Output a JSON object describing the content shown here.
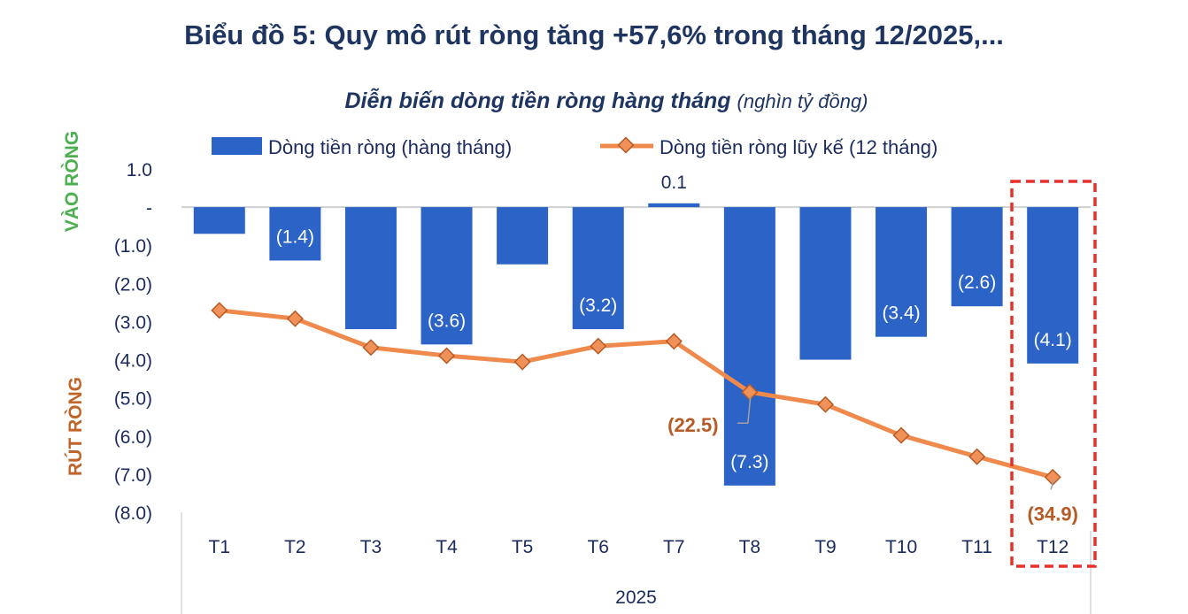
{
  "title": "Biểu đồ 5: Quy mô rút ròng tăng +57,6% trong tháng 12/2025,...",
  "subtitle_main": "Diễn biến dòng tiền ròng hàng tháng",
  "subtitle_unit": "(nghìn tỷ đồng)",
  "chart_data": {
    "type": "bar+line",
    "categories": [
      "T1",
      "T2",
      "T3",
      "T4",
      "T5",
      "T6",
      "T7",
      "T8",
      "T9",
      "T10",
      "T11",
      "T12"
    ],
    "group_label": "2025",
    "series": [
      {
        "name": "Dòng tiền ròng (hàng tháng)",
        "type": "bar",
        "axis": "left",
        "color": "#2b63c6",
        "values": [
          -0.7,
          -1.4,
          -3.2,
          -3.6,
          -1.5,
          -3.2,
          0.1,
          -7.3,
          -4.0,
          -3.4,
          -2.6,
          -4.1
        ],
        "labels": [
          null,
          "(1.4)",
          null,
          "(3.6)",
          null,
          "(3.2)",
          "0.1",
          "(7.3)",
          null,
          "(3.4)",
          "(2.6)",
          "(4.1)"
        ]
      },
      {
        "name": "Dòng tiền ròng lũy kế (12 tháng)",
        "type": "line",
        "axis": "right-hidden",
        "color": "#ef8a4c",
        "values": [
          -10.6,
          -11.8,
          -16.0,
          -17.2,
          -18.1,
          -15.8,
          -15.1,
          -22.5,
          -24.3,
          -28.8,
          -31.9,
          -34.9
        ],
        "labels": [
          null,
          null,
          null,
          null,
          null,
          null,
          null,
          "(22.5)",
          null,
          null,
          null,
          "(34.9)"
        ]
      }
    ],
    "ylim": [
      -8,
      1
    ],
    "y2lim": [
      -40,
      10
    ],
    "y_ticks": [
      "1.0",
      "-",
      "(1.0)",
      "(2.0)",
      "(3.0)",
      "(4.0)",
      "(5.0)",
      "(6.0)",
      "(7.0)",
      "(8.0)"
    ],
    "y_tick_values": [
      1,
      0,
      -1,
      -2,
      -3,
      -4,
      -5,
      -6,
      -7,
      -8
    ],
    "ylabel_positive": "VÀO RÒNG",
    "ylabel_negative": "RÚT RÒNG",
    "ylabel_positive_color": "#4caf50",
    "ylabel_negative_color": "#c0652a",
    "legend_position": "top",
    "highlight": "T12",
    "highlight_color": "#e8302a",
    "grid": false
  }
}
